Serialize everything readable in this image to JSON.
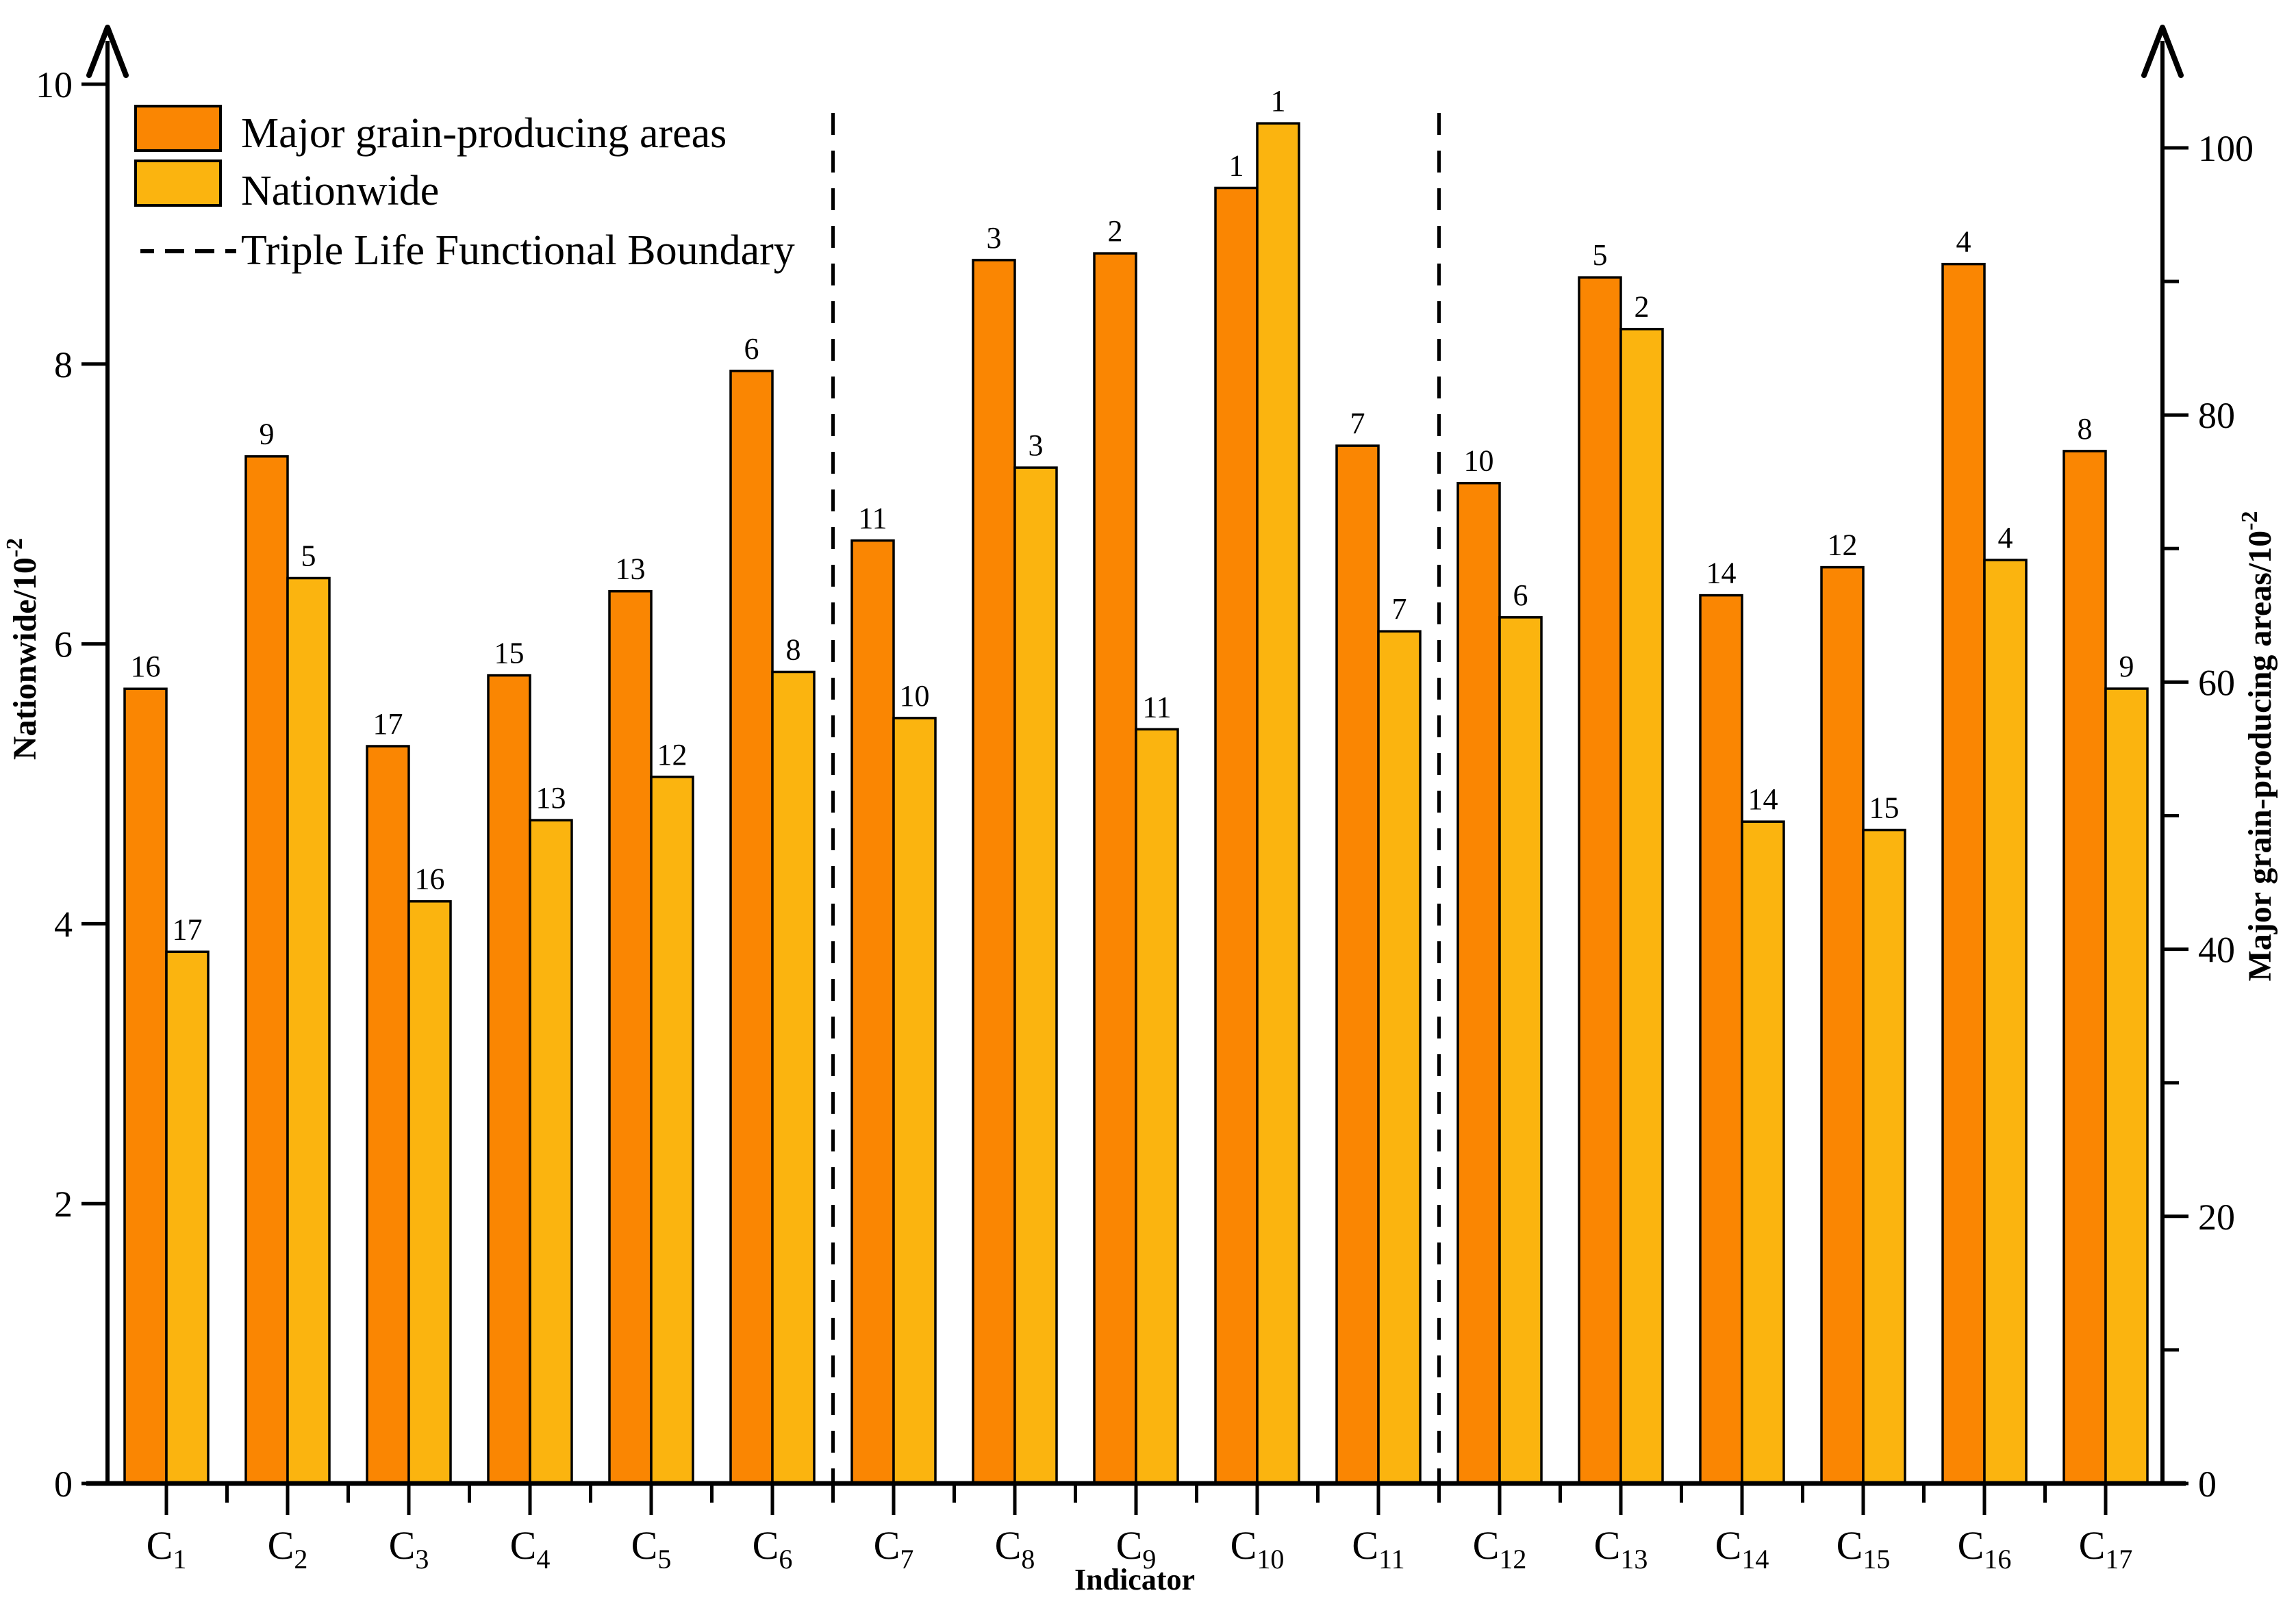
{
  "chart_data": {
    "type": "bar",
    "title": "",
    "xlabel": "Indicator",
    "y_left": {
      "label_prefix": "Nationwide/10",
      "label_exp": "-2",
      "label_display": "Nationwide/10⁻²",
      "min": 0,
      "max": 10.5,
      "ticks": [
        0,
        2,
        4,
        6,
        8,
        10
      ]
    },
    "y_right": {
      "label_prefix": "Major grain-producing areas/10",
      "label_exp": "-2",
      "label_display": "Major grain-producing areas/10⁻²",
      "min": 0,
      "max": 110,
      "major_ticks": [
        0,
        20,
        40,
        60,
        80,
        100
      ],
      "minor_ticks": [
        10,
        30,
        50,
        70,
        90
      ]
    },
    "categories_base": "C",
    "categories_sub": [
      "1",
      "2",
      "3",
      "4",
      "5",
      "6",
      "7",
      "8",
      "9",
      "10",
      "11",
      "12",
      "13",
      "14",
      "15",
      "16",
      "17"
    ],
    "series": [
      {
        "name": "Major grain-producing areas",
        "axis": "right",
        "color": "#FA8602",
        "values": [
          59.5,
          76.9,
          55.2,
          60.5,
          66.8,
          83.3,
          70.6,
          91.6,
          92.1,
          97.0,
          77.7,
          74.9,
          90.3,
          66.5,
          68.6,
          91.3,
          77.3
        ],
        "rank_labels": [
          "16",
          "9",
          "17",
          "15",
          "13",
          "6",
          "11",
          "3",
          "2",
          "1",
          "7",
          "10",
          "5",
          "14",
          "12",
          "4",
          "8"
        ]
      },
      {
        "name": "Nationwide",
        "axis": "left",
        "color": "#FBB40F",
        "values": [
          3.8,
          6.47,
          4.16,
          4.74,
          5.05,
          5.8,
          5.47,
          7.26,
          5.39,
          9.72,
          6.09,
          6.19,
          8.25,
          4.73,
          4.67,
          6.6,
          5.68
        ],
        "rank_labels": [
          "17",
          "5",
          "16",
          "13",
          "12",
          "8",
          "10",
          "3",
          "11",
          "1",
          "7",
          "6",
          "2",
          "14",
          "15",
          "4",
          "9"
        ]
      }
    ],
    "legend": [
      {
        "swatch": "major",
        "label": "Major grain-producing areas"
      },
      {
        "swatch": "nationwide",
        "label": "Nationwide"
      },
      {
        "swatch": "dashed-line",
        "label": "Triple Life Functional Boundary"
      }
    ],
    "boundary_lines": {
      "label": "Triple Life Functional Boundary",
      "after_category_index": [
        6,
        11
      ]
    },
    "axis_color": "#000000",
    "grid": "off",
    "legend_position": "top-left"
  }
}
